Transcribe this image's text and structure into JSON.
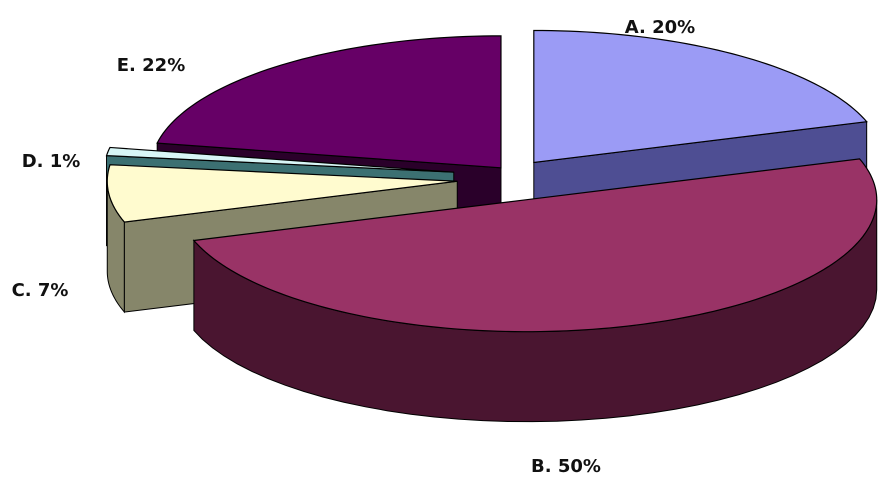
{
  "chart_data": {
    "type": "pie",
    "style": "3d-exploded",
    "slices": [
      {
        "label": "A",
        "value": 20,
        "display": "A. 20%",
        "color": "#9b9bf5",
        "side_color": "#4e4e93"
      },
      {
        "label": "B",
        "value": 50,
        "display": "B. 50%",
        "color": "#993366",
        "side_color": "#4a1530"
      },
      {
        "label": "C",
        "value": 7,
        "display": "C. 7%",
        "color": "#fffbcf",
        "side_color": "#86866a"
      },
      {
        "label": "D",
        "value": 1,
        "display": "D. 1%",
        "color": "#d8f6f6",
        "side_color": "#3c7072"
      },
      {
        "label": "E",
        "value": 22,
        "display": "E. 22%",
        "color": "#660066",
        "side_color": "#2a002a"
      }
    ]
  }
}
